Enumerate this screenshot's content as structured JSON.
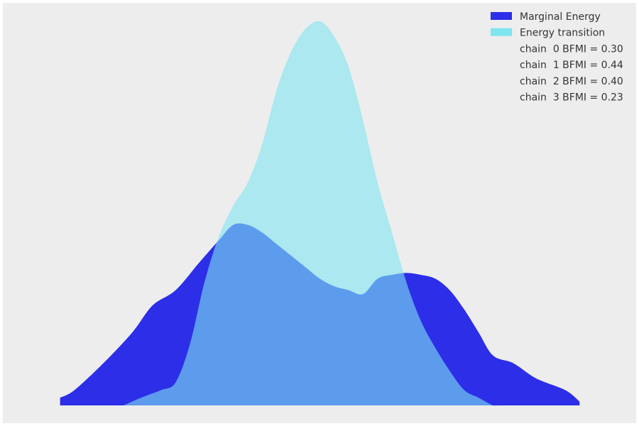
{
  "chart_data": {
    "type": "area",
    "title": "",
    "xlabel": "",
    "ylabel": "",
    "grid": false,
    "axes_visible": false,
    "legend_position": "top-right",
    "background": "#ededed",
    "xlim": [
      -1,
      1
    ],
    "ylim": [
      0,
      1
    ],
    "series": [
      {
        "name": "Marginal Energy",
        "color": "#2c2ee8",
        "x": [
          -0.9,
          -0.85,
          -0.75,
          -0.65,
          -0.58,
          -0.5,
          -0.42,
          -0.35,
          -0.3,
          -0.25,
          -0.2,
          -0.15,
          -0.1,
          -0.05,
          0.0,
          0.05,
          0.1,
          0.15,
          0.2,
          0.25,
          0.3,
          0.35,
          0.4,
          0.45,
          0.5,
          0.55,
          0.6,
          0.67,
          0.75,
          0.85,
          0.9
        ],
        "y": [
          0.02,
          0.04,
          0.11,
          0.19,
          0.26,
          0.3,
          0.37,
          0.43,
          0.47,
          0.47,
          0.45,
          0.42,
          0.39,
          0.36,
          0.33,
          0.31,
          0.3,
          0.29,
          0.33,
          0.34,
          0.345,
          0.34,
          0.33,
          0.3,
          0.25,
          0.19,
          0.13,
          0.11,
          0.07,
          0.04,
          0.01
        ]
      },
      {
        "name": "Energy transition",
        "color": "#7fe4f0",
        "x": [
          -0.68,
          -0.62,
          -0.55,
          -0.5,
          -0.45,
          -0.4,
          -0.35,
          -0.3,
          -0.25,
          -0.2,
          -0.15,
          -0.1,
          -0.05,
          0.0,
          0.05,
          0.1,
          0.15,
          0.2,
          0.25,
          0.3,
          0.35,
          0.4,
          0.45,
          0.5,
          0.55,
          0.6,
          0.62
        ],
        "y": [
          0.0,
          0.02,
          0.04,
          0.06,
          0.16,
          0.32,
          0.44,
          0.52,
          0.58,
          0.68,
          0.82,
          0.92,
          0.98,
          1.0,
          0.96,
          0.88,
          0.74,
          0.58,
          0.45,
          0.32,
          0.22,
          0.15,
          0.09,
          0.04,
          0.02,
          0.0,
          0.0
        ]
      }
    ],
    "legend": [
      {
        "label": "Marginal Energy",
        "swatch": "#2c2ee8"
      },
      {
        "label": "Energy transition",
        "swatch": "#7fe4f0"
      },
      {
        "label": "chain  0 BFMI = 0.30",
        "swatch": null
      },
      {
        "label": "chain  1 BFMI = 0.44",
        "swatch": null
      },
      {
        "label": "chain  2 BFMI = 0.40",
        "swatch": null
      },
      {
        "label": "chain  3 BFMI = 0.23",
        "swatch": null
      }
    ]
  }
}
